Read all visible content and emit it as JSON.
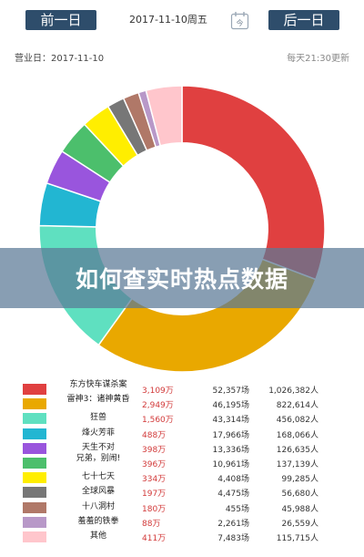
{
  "header": {
    "prev_label": "前一日",
    "next_label": "后一日",
    "date": "2017-11-10周五",
    "calendar_label": "今"
  },
  "info": {
    "business_date": "营业日：2017-11-10",
    "update_note": "每天21:30更新"
  },
  "overlay": {
    "title": "如何查实时热点数据"
  },
  "colors": {
    "nav": "#2e4d6b",
    "accent_red": "#d23a3a"
  },
  "chart_data": {
    "type": "pie",
    "title": "",
    "categories": [
      "东方快车谋杀案",
      "雷神3：诸神黄昏",
      "狂兽",
      "烽火芳菲",
      "天生不对",
      "兄弟，别闹!",
      "七十七天",
      "全球风暴",
      "十八洞村",
      "羞羞的铁拳",
      "其他"
    ],
    "values": [
      3109,
      2949,
      1560,
      488,
      398,
      396,
      334,
      197,
      180,
      88,
      411
    ],
    "value_labels": [
      "3,109万",
      "2,949万",
      "1,560万",
      "488万",
      "398万",
      "396万",
      "334万",
      "197万",
      "180万",
      "88万",
      "411万"
    ],
    "shows": [
      "52,357场",
      "46,195场",
      "43,314场",
      "17,966场",
      "13,336场",
      "10,961场",
      "4,408场",
      "4,475场",
      "455场",
      "2,261场",
      "7,483场"
    ],
    "audience": [
      "1,026,382人",
      "822,614人",
      "456,082人",
      "168,066人",
      "126,635人",
      "137,139人",
      "99,285人",
      "56,680人",
      "45,988人",
      "26,559人",
      "115,715人"
    ],
    "colors": [
      "#e04040",
      "#e9a800",
      "#5fe0c0",
      "#22b6d2",
      "#9955dd",
      "#4cbf6c",
      "#ffee00",
      "#777777",
      "#b07868",
      "#b898c8",
      "#ffc6cc"
    ],
    "inner_radius_ratio": 0.6
  }
}
